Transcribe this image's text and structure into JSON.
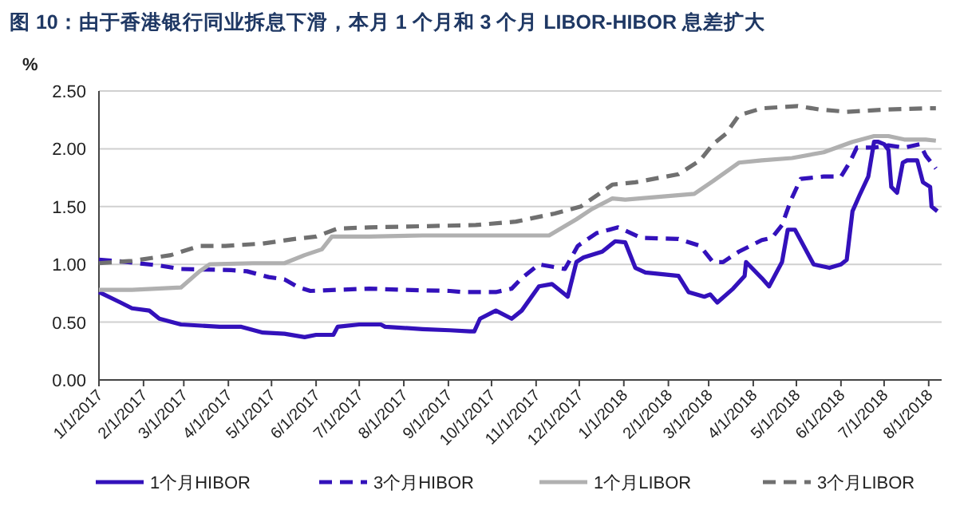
{
  "chart_data": {
    "type": "line",
    "title": "图 10：由于香港银行同业拆息下滑，本月 1 个月和 3 个月 LIBOR-HIBOR 息差扩大",
    "ylabel": "%",
    "xlim": [
      "2017-01-01",
      "2018-08-10"
    ],
    "xticks": [
      {
        "value": "2017-01-01",
        "label": "1/1/2017"
      },
      {
        "value": "2017-02-01",
        "label": "2/1/2017"
      },
      {
        "value": "2017-03-01",
        "label": "3/1/2017"
      },
      {
        "value": "2017-04-01",
        "label": "4/1/2017"
      },
      {
        "value": "2017-05-01",
        "label": "5/1/2017"
      },
      {
        "value": "2017-06-01",
        "label": "6/1/2017"
      },
      {
        "value": "2017-07-01",
        "label": "7/1/2017"
      },
      {
        "value": "2017-08-01",
        "label": "8/1/2017"
      },
      {
        "value": "2017-09-01",
        "label": "9/1/2017"
      },
      {
        "value": "2017-10-01",
        "label": "10/1/2017"
      },
      {
        "value": "2017-11-01",
        "label": "11/1/2017"
      },
      {
        "value": "2017-12-01",
        "label": "12/1/2017"
      },
      {
        "value": "2018-01-01",
        "label": "1/1/2018"
      },
      {
        "value": "2018-02-01",
        "label": "2/1/2018"
      },
      {
        "value": "2018-03-01",
        "label": "3/1/2018"
      },
      {
        "value": "2018-04-01",
        "label": "4/1/2018"
      },
      {
        "value": "2018-05-01",
        "label": "5/1/2018"
      },
      {
        "value": "2018-06-01",
        "label": "6/1/2018"
      },
      {
        "value": "2018-07-01",
        "label": "7/1/2018"
      },
      {
        "value": "2018-08-01",
        "label": "8/1/2018"
      }
    ],
    "ylim": [
      0,
      2.5
    ],
    "yticks": [
      {
        "value": 0,
        "label": "0.00"
      },
      {
        "value": 0.5,
        "label": "0.50"
      },
      {
        "value": 1,
        "label": "1.00"
      },
      {
        "value": 1.5,
        "label": "1.50"
      },
      {
        "value": 2,
        "label": "2.00"
      },
      {
        "value": 2.5,
        "label": "2.50"
      }
    ],
    "grid": "y",
    "legend": "bottom",
    "series": [
      {
        "name": "1个月HIBOR",
        "color": "#3311bb",
        "line_style": "solid",
        "x": [
          "2017-01-01",
          "2017-01-16",
          "2017-01-24",
          "2017-02-05",
          "2017-02-12",
          "2017-02-27",
          "2017-03-26",
          "2017-04-10",
          "2017-04-25",
          "2017-05-10",
          "2017-05-24",
          "2017-06-01",
          "2017-06-13",
          "2017-06-16",
          "2017-07-01",
          "2017-07-16",
          "2017-07-19",
          "2017-08-14",
          "2017-09-02",
          "2017-09-16",
          "2017-09-19",
          "2017-09-23",
          "2017-10-04",
          "2017-10-15",
          "2017-10-22",
          "2017-11-03",
          "2017-11-12",
          "2017-11-21",
          "2017-11-23",
          "2017-11-29",
          "2017-12-04",
          "2017-12-17",
          "2017-12-26",
          "2018-01-02",
          "2018-01-09",
          "2018-01-16",
          "2018-02-08",
          "2018-02-15",
          "2018-02-26",
          "2018-03-02",
          "2018-03-07",
          "2018-03-18",
          "2018-03-26",
          "2018-03-27",
          "2018-04-07",
          "2018-04-12",
          "2018-04-21",
          "2018-04-25",
          "2018-04-30",
          "2018-05-13",
          "2018-05-24",
          "2018-06-01",
          "2018-06-05",
          "2018-06-09",
          "2018-06-14",
          "2018-06-20",
          "2018-06-24",
          "2018-06-27",
          "2018-07-01",
          "2018-07-04",
          "2018-07-06",
          "2018-07-10",
          "2018-07-14",
          "2018-07-17",
          "2018-07-24",
          "2018-07-28",
          "2018-08-02",
          "2018-08-03",
          "2018-08-07"
        ],
        "values": [
          0.76,
          0.67,
          0.62,
          0.6,
          0.53,
          0.48,
          0.46,
          0.46,
          0.41,
          0.4,
          0.37,
          0.39,
          0.39,
          0.46,
          0.48,
          0.48,
          0.46,
          0.44,
          0.43,
          0.42,
          0.42,
          0.53,
          0.6,
          0.53,
          0.6,
          0.81,
          0.83,
          0.74,
          0.72,
          1.02,
          1.06,
          1.11,
          1.2,
          1.19,
          0.97,
          0.93,
          0.9,
          0.76,
          0.72,
          0.74,
          0.67,
          0.79,
          0.9,
          1.02,
          0.88,
          0.81,
          1.02,
          1.3,
          1.3,
          1.0,
          0.97,
          1.0,
          1.04,
          1.46,
          1.6,
          1.76,
          2.06,
          2.06,
          2.04,
          1.99,
          1.67,
          1.62,
          1.88,
          1.9,
          1.9,
          1.71,
          1.67,
          1.5,
          1.46
        ]
      },
      {
        "name": "3个月HIBOR",
        "color": "#3311bb",
        "line_style": "dashed",
        "x": [
          "2017-01-01",
          "2017-01-13",
          "2017-01-28",
          "2017-02-12",
          "2017-02-27",
          "2017-04-03",
          "2017-04-14",
          "2017-04-29",
          "2017-05-10",
          "2017-05-20",
          "2017-05-28",
          "2017-06-16",
          "2017-07-08",
          "2017-07-30",
          "2017-09-02",
          "2017-09-12",
          "2017-10-04",
          "2017-10-15",
          "2017-10-22",
          "2017-11-03",
          "2017-11-21",
          "2017-11-30",
          "2017-12-13",
          "2017-12-28",
          "2018-01-13",
          "2018-02-08",
          "2018-02-23",
          "2018-03-04",
          "2018-03-11",
          "2018-03-22",
          "2018-04-07",
          "2018-04-14",
          "2018-04-21",
          "2018-04-27",
          "2018-05-04",
          "2018-05-20",
          "2018-06-01",
          "2018-06-07",
          "2018-06-12",
          "2018-06-24",
          "2018-07-04",
          "2018-07-15",
          "2018-07-26",
          "2018-07-30",
          "2018-08-06"
        ],
        "values": [
          1.04,
          1.03,
          1.01,
          0.99,
          0.96,
          0.95,
          0.94,
          0.89,
          0.87,
          0.8,
          0.77,
          0.78,
          0.79,
          0.78,
          0.77,
          0.76,
          0.76,
          0.79,
          0.88,
          1.0,
          0.96,
          1.16,
          1.27,
          1.32,
          1.23,
          1.22,
          1.16,
          1.02,
          1.02,
          1.11,
          1.21,
          1.23,
          1.34,
          1.55,
          1.74,
          1.76,
          1.76,
          1.88,
          2.01,
          2.01,
          2.03,
          2.01,
          2.04,
          1.94,
          1.83
        ]
      },
      {
        "name": "1个月LIBOR",
        "color": "#b0b0b0",
        "line_style": "solid",
        "x": [
          "2017-01-01",
          "2017-01-24",
          "2017-02-27",
          "2017-03-12",
          "2017-03-19",
          "2017-04-18",
          "2017-05-10",
          "2017-05-24",
          "2017-06-05",
          "2017-06-12",
          "2017-07-08",
          "2017-08-14",
          "2017-09-20",
          "2017-11-10",
          "2017-11-29",
          "2017-12-10",
          "2017-12-24",
          "2018-01-02",
          "2018-02-19",
          "2018-03-04",
          "2018-03-22",
          "2018-04-07",
          "2018-04-28",
          "2018-05-20",
          "2018-06-09",
          "2018-06-24",
          "2018-07-04",
          "2018-07-15",
          "2018-07-30",
          "2018-08-06"
        ],
        "values": [
          0.78,
          0.78,
          0.8,
          0.94,
          1.0,
          1.01,
          1.01,
          1.08,
          1.13,
          1.24,
          1.24,
          1.25,
          1.25,
          1.25,
          1.39,
          1.48,
          1.57,
          1.56,
          1.61,
          1.72,
          1.88,
          1.9,
          1.92,
          1.97,
          2.06,
          2.11,
          2.11,
          2.08,
          2.08,
          2.07
        ]
      },
      {
        "name": "3个月LIBOR",
        "color": "#707070",
        "line_style": "dashed",
        "x": [
          "2017-01-01",
          "2017-01-24",
          "2017-02-20",
          "2017-03-12",
          "2017-03-30",
          "2017-04-25",
          "2017-05-17",
          "2017-06-01",
          "2017-06-16",
          "2017-07-08",
          "2017-08-14",
          "2017-09-20",
          "2017-10-18",
          "2017-11-14",
          "2017-12-02",
          "2017-12-24",
          "2018-01-09",
          "2018-02-08",
          "2018-02-23",
          "2018-03-04",
          "2018-03-13",
          "2018-03-22",
          "2018-04-07",
          "2018-05-02",
          "2018-05-17",
          "2018-06-05",
          "2018-07-04",
          "2018-07-30",
          "2018-08-06"
        ],
        "values": [
          1.01,
          1.03,
          1.08,
          1.16,
          1.16,
          1.18,
          1.22,
          1.24,
          1.31,
          1.32,
          1.33,
          1.34,
          1.37,
          1.44,
          1.5,
          1.69,
          1.71,
          1.78,
          1.9,
          2.04,
          2.13,
          2.29,
          2.35,
          2.37,
          2.34,
          2.32,
          2.34,
          2.35,
          2.35
        ]
      }
    ]
  }
}
